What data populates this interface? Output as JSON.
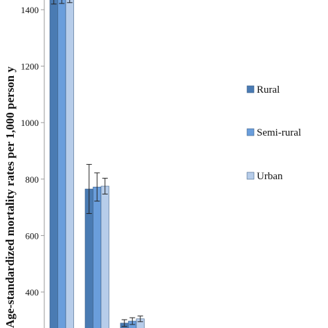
{
  "chart_data": {
    "type": "bar",
    "title": "",
    "xlabel": "",
    "ylabel": "Age-standardized mortality rates  per 1,000 person y",
    "ylim": [
      275,
      1440
    ],
    "yticks": [
      400,
      600,
      800,
      1000,
      1200,
      1400
    ],
    "grid": false,
    "legend_position": "right",
    "series": [
      {
        "name": "Rural",
        "color": "#4a7bb3",
        "values": [
          1440,
          765,
          290
        ],
        "errors": [
          20,
          87,
          12
        ]
      },
      {
        "name": "Semi-rural",
        "color": "#6a9edc",
        "values": [
          1440,
          772,
          297
        ],
        "errors": [
          18,
          50,
          12
        ]
      },
      {
        "name": "Urban",
        "color": "#b7cdea",
        "values": [
          1440,
          775,
          305
        ],
        "errors": [
          15,
          28,
          10
        ]
      }
    ]
  }
}
